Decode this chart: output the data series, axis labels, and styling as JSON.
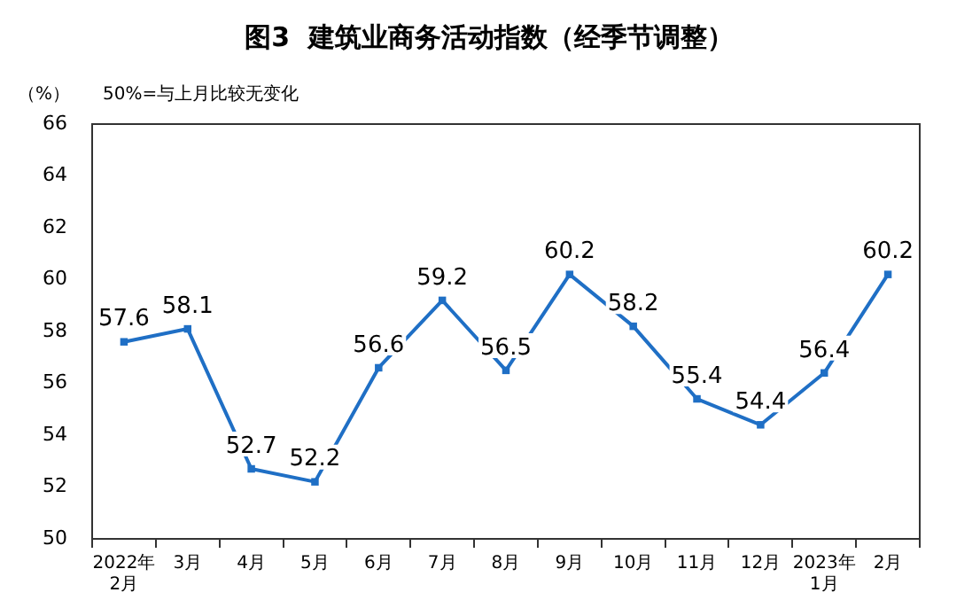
{
  "chart_data": {
    "type": "line",
    "title": "图3  建筑业商务活动指数（经季节调整）",
    "ylabel": "（%）",
    "annotations": [
      "50%=与上月比较无变化"
    ],
    "categories": [
      "2022年\n2月",
      "3月",
      "4月",
      "5月",
      "6月",
      "7月",
      "8月",
      "9月",
      "10月",
      "11月",
      "12月",
      "2023年\n1月",
      "2月"
    ],
    "series": [
      {
        "color": "#1f6fc5",
        "values": [
          57.6,
          58.1,
          52.7,
          52.2,
          56.6,
          59.2,
          56.5,
          60.2,
          58.2,
          55.4,
          54.4,
          56.4,
          60.2
        ]
      }
    ],
    "ylim": [
      50,
      66
    ],
    "yticks": [
      50,
      52,
      54,
      56,
      58,
      60,
      62,
      64,
      66
    ],
    "grid": false,
    "legend": false,
    "marker": "square",
    "line_style": "solid",
    "data_labels": true
  }
}
